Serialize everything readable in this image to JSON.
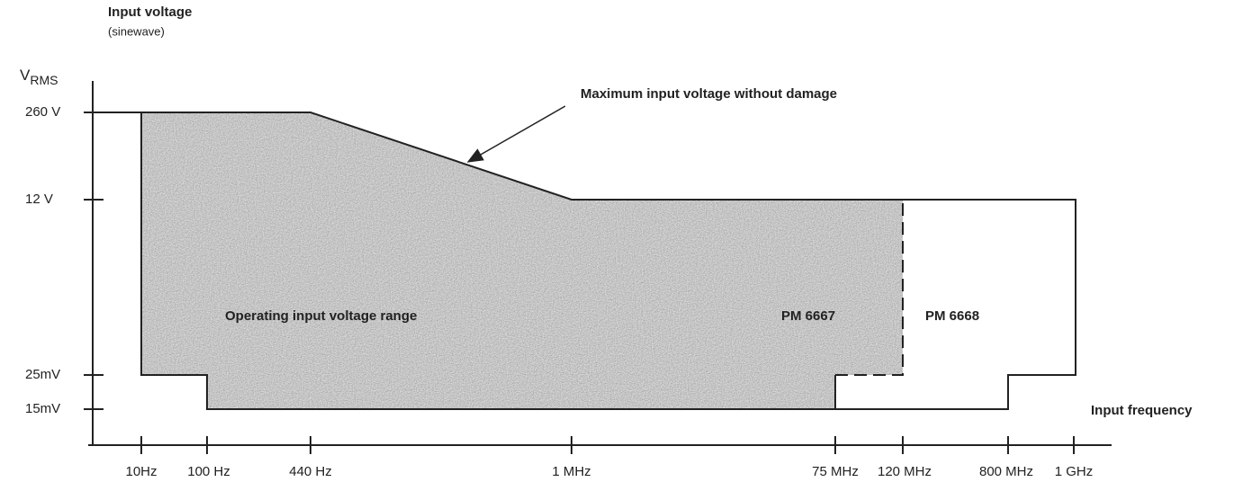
{
  "header": {
    "title": "Input voltage",
    "subtitle": "(sinewave)"
  },
  "y_axis": {
    "label": "V",
    "label_sub": "RMS",
    "ticks": [
      "260 V",
      "12 V",
      "25mV",
      "15mV"
    ]
  },
  "x_axis": {
    "label": "Input frequency",
    "ticks": [
      "10Hz",
      "100 Hz",
      "440 Hz",
      "1 MHz",
      "75 MHz",
      "120 MHz",
      "800 MHz",
      "1 GHz"
    ]
  },
  "regions": {
    "operating": "Operating input voltage range",
    "pm6667": "PM 6667",
    "pm6668": "PM 6668"
  },
  "annotation": "Maximum input voltage without damage"
}
